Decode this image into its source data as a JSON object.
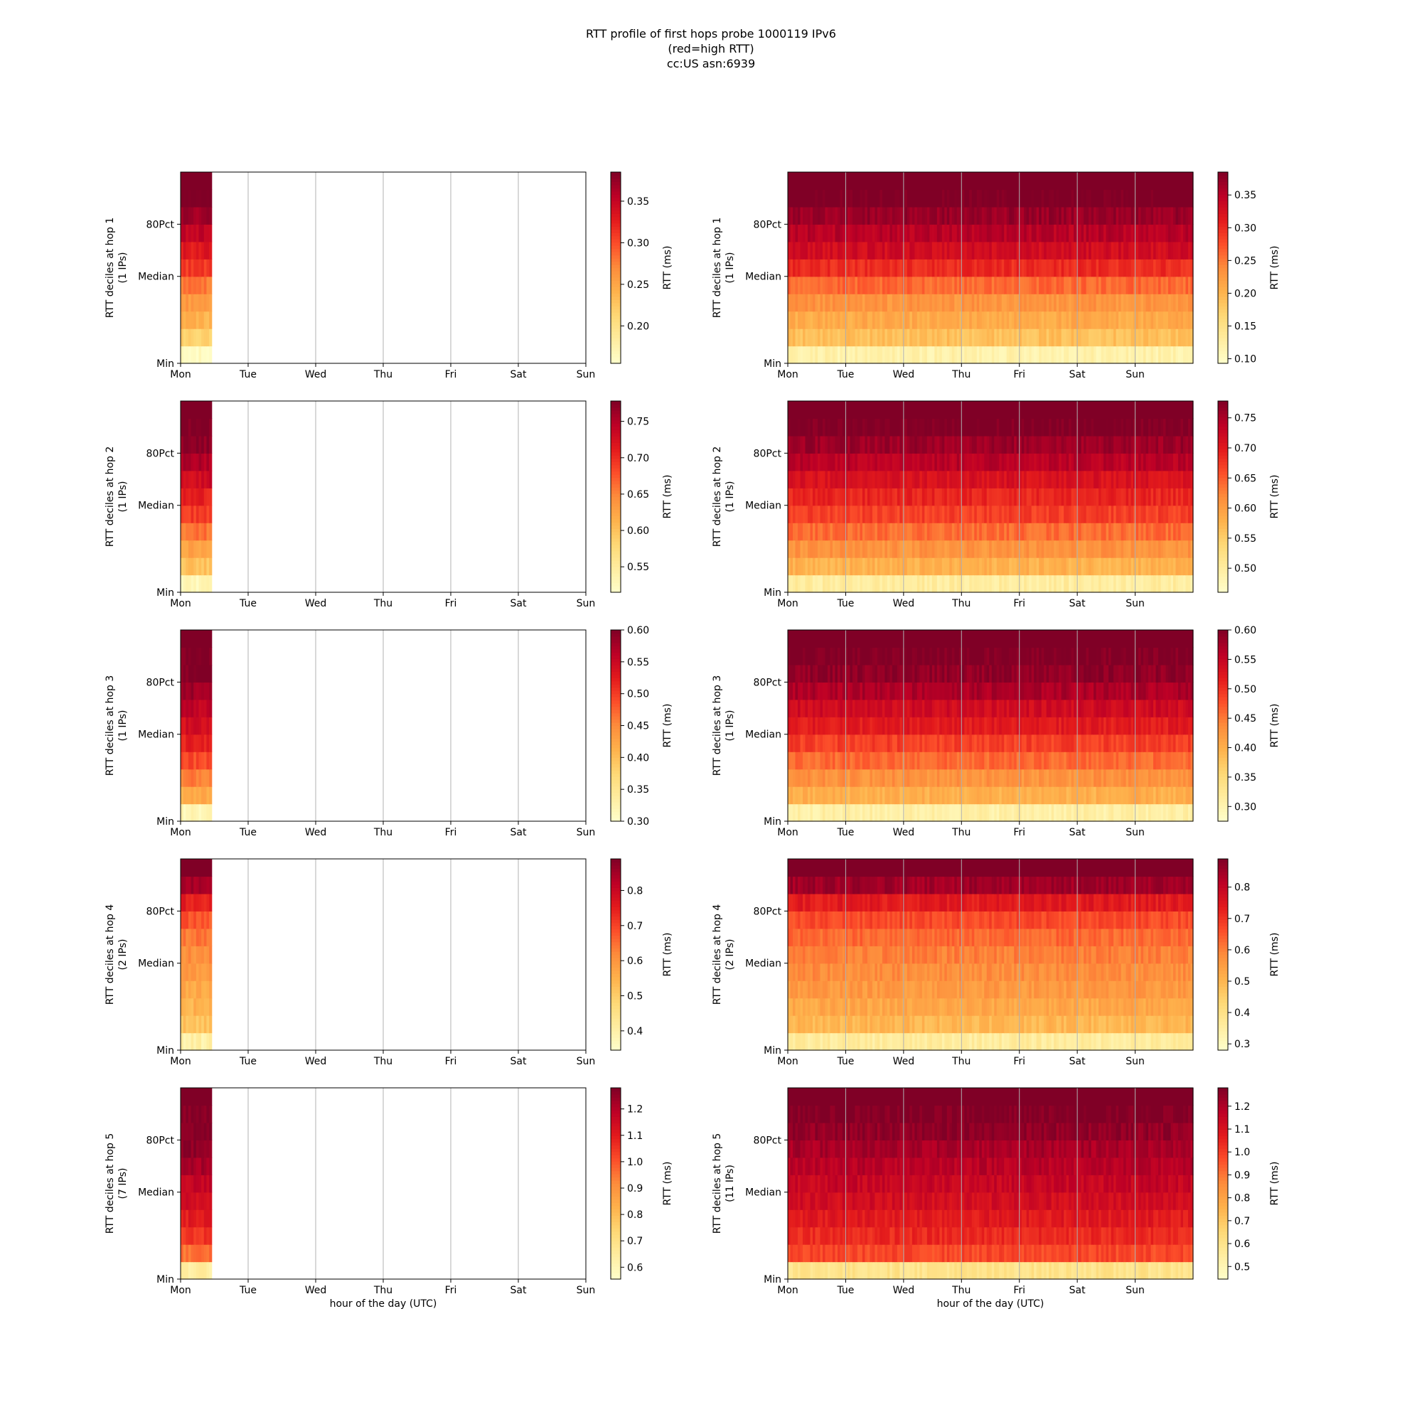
{
  "title": {
    "line1": "RTT profile of first hops probe 1000119 IPv6",
    "line2": "(red=high RTT)",
    "line3": "cc:US asn:6939"
  },
  "common": {
    "xlabel": "hour of the day (UTC)",
    "x_tick_labels": [
      "Mon",
      "Tue",
      "Wed",
      "Thu",
      "Fri",
      "Sat",
      "Sun"
    ],
    "y_tick_labels": [
      "Min",
      "Median",
      "80Pct"
    ],
    "colorbar_label": "RTT (ms)",
    "colormap": [
      "#ffffcc",
      "#ffeda0",
      "#fed976",
      "#feb24c",
      "#fd8d3c",
      "#fc4e2a",
      "#e31a1c",
      "#bd0026",
      "#800026"
    ]
  },
  "chart_data": [
    {
      "type": "heatmap",
      "column": "left",
      "hop": 1,
      "ylabel": "RTT deciles at hop 1",
      "ylabel2": "(1 IPs)",
      "x_range_days": [
        0,
        6
      ],
      "data_coverage_days": [
        0,
        0.46
      ],
      "decile_levels": [
        0.16,
        0.22,
        0.24,
        0.26,
        0.28,
        0.31,
        0.33,
        0.35,
        0.37,
        0.39,
        0.39
      ],
      "cbar_ticks": [
        0.2,
        0.25,
        0.3,
        0.35
      ],
      "cbar_range": [
        0.155,
        0.385
      ]
    },
    {
      "type": "heatmap",
      "column": "right",
      "hop": 1,
      "ylabel": "RTT deciles at hop 1",
      "ylabel2": "(1 IPs)",
      "x_range_days": [
        0,
        7
      ],
      "data_coverage_days": [
        0,
        7
      ],
      "decile_levels": [
        0.12,
        0.19,
        0.21,
        0.23,
        0.26,
        0.3,
        0.33,
        0.35,
        0.37,
        0.39,
        0.39
      ],
      "cbar_ticks": [
        0.1,
        0.15,
        0.2,
        0.25,
        0.3,
        0.35
      ],
      "cbar_range": [
        0.093,
        0.385
      ]
    },
    {
      "type": "heatmap",
      "column": "left",
      "hop": 2,
      "ylabel": "RTT deciles at hop 2",
      "ylabel2": "(1 IPs)",
      "x_range_days": [
        0,
        6
      ],
      "data_coverage_days": [
        0,
        0.46
      ],
      "decile_levels": [
        0.53,
        0.6,
        0.63,
        0.66,
        0.69,
        0.71,
        0.73,
        0.75,
        0.77,
        0.78,
        0.78
      ],
      "cbar_ticks": [
        0.55,
        0.6,
        0.65,
        0.7,
        0.75
      ],
      "cbar_range": [
        0.515,
        0.778
      ]
    },
    {
      "type": "heatmap",
      "column": "right",
      "hop": 2,
      "ylabel": "RTT deciles at hop 2",
      "ylabel2": "(1 IPs)",
      "x_range_days": [
        0,
        7
      ],
      "data_coverage_days": [
        0,
        7
      ],
      "decile_levels": [
        0.5,
        0.58,
        0.61,
        0.64,
        0.67,
        0.69,
        0.71,
        0.74,
        0.76,
        0.78,
        0.78
      ],
      "cbar_ticks": [
        0.5,
        0.55,
        0.6,
        0.65,
        0.7,
        0.75
      ],
      "cbar_range": [
        0.46,
        0.778
      ]
    },
    {
      "type": "heatmap",
      "column": "left",
      "hop": 3,
      "ylabel": "RTT deciles at hop 3",
      "ylabel2": "(1 IPs)",
      "x_range_days": [
        0,
        6
      ],
      "data_coverage_days": [
        0,
        0.46
      ],
      "decile_levels": [
        0.32,
        0.42,
        0.46,
        0.49,
        0.52,
        0.54,
        0.56,
        0.58,
        0.6,
        0.6,
        0.6
      ],
      "cbar_ticks": [
        0.3,
        0.35,
        0.4,
        0.45,
        0.5,
        0.55,
        0.6
      ],
      "cbar_range": [
        0.3,
        0.6
      ]
    },
    {
      "type": "heatmap",
      "column": "right",
      "hop": 3,
      "ylabel": "RTT deciles at hop 3",
      "ylabel2": "(1 IPs)",
      "x_range_days": [
        0,
        7
      ],
      "data_coverage_days": [
        0,
        7
      ],
      "decile_levels": [
        0.31,
        0.4,
        0.43,
        0.46,
        0.49,
        0.52,
        0.54,
        0.57,
        0.59,
        0.6,
        0.6
      ],
      "cbar_ticks": [
        0.3,
        0.35,
        0.4,
        0.45,
        0.5,
        0.55,
        0.6
      ],
      "cbar_range": [
        0.275,
        0.6
      ]
    },
    {
      "type": "heatmap",
      "column": "left",
      "hop": 4,
      "ylabel": "RTT deciles at hop 4",
      "ylabel2": "(2 IPs)",
      "x_range_days": [
        0,
        6
      ],
      "data_coverage_days": [
        0,
        0.46
      ],
      "decile_levels": [
        0.4,
        0.52,
        0.55,
        0.57,
        0.59,
        0.61,
        0.64,
        0.68,
        0.75,
        0.85,
        0.89
      ],
      "cbar_ticks": [
        0.4,
        0.5,
        0.6,
        0.7,
        0.8
      ],
      "cbar_range": [
        0.345,
        0.89
      ]
    },
    {
      "type": "heatmap",
      "column": "right",
      "hop": 4,
      "ylabel": "RTT deciles at hop 4",
      "ylabel2": "(2 IPs)",
      "x_range_days": [
        0,
        7
      ],
      "data_coverage_days": [
        0,
        7
      ],
      "decile_levels": [
        0.36,
        0.5,
        0.53,
        0.56,
        0.58,
        0.6,
        0.63,
        0.67,
        0.74,
        0.85,
        0.89
      ],
      "cbar_ticks": [
        0.3,
        0.4,
        0.5,
        0.6,
        0.7,
        0.8
      ],
      "cbar_range": [
        0.28,
        0.89
      ]
    },
    {
      "type": "heatmap",
      "column": "left",
      "hop": 5,
      "ylabel": "RTT deciles at hop 5",
      "ylabel2": "(7 IPs)",
      "x_range_days": [
        0,
        6
      ],
      "data_coverage_days": [
        0,
        0.46
      ],
      "decile_levels": [
        0.65,
        0.95,
        1.05,
        1.1,
        1.14,
        1.18,
        1.22,
        1.26,
        1.27,
        1.28,
        1.28
      ],
      "cbar_ticks": [
        0.6,
        0.7,
        0.8,
        0.9,
        1.0,
        1.1,
        1.2
      ],
      "cbar_range": [
        0.555,
        1.28
      ]
    },
    {
      "type": "heatmap",
      "column": "right",
      "hop": 5,
      "ylabel": "RTT deciles at hop 5",
      "ylabel2": "(11 IPs)",
      "x_range_days": [
        0,
        7
      ],
      "data_coverage_days": [
        0,
        7
      ],
      "decile_levels": [
        0.6,
        0.98,
        1.04,
        1.08,
        1.12,
        1.15,
        1.18,
        1.21,
        1.25,
        1.28,
        1.28
      ],
      "cbar_ticks": [
        0.5,
        0.6,
        0.7,
        0.8,
        0.9,
        1.0,
        1.1,
        1.2
      ],
      "cbar_range": [
        0.445,
        1.28
      ]
    }
  ]
}
